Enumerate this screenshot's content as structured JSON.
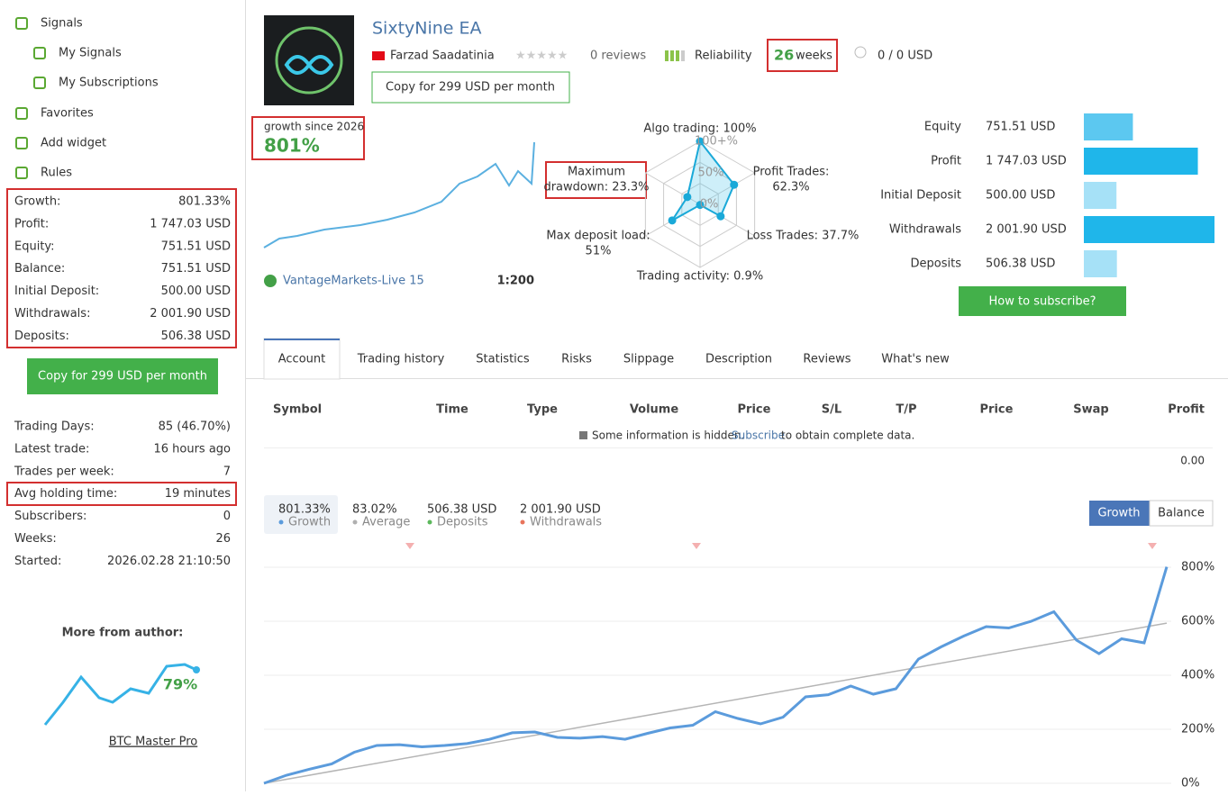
{
  "sidebar": {
    "nav": [
      "Signals",
      "My Signals",
      "My Subscriptions",
      "Favorites",
      "Add widget",
      "Rules"
    ],
    "stats": [
      [
        "Growth:",
        "801.33%"
      ],
      [
        "Profit:",
        "1 747.03 USD"
      ],
      [
        "Equity:",
        "751.51 USD"
      ],
      [
        "Balance:",
        "751.51 USD"
      ],
      [
        "Initial Deposit:",
        "500.00 USD"
      ],
      [
        "Withdrawals:",
        "2 001.90 USD"
      ],
      [
        "Deposits:",
        "506.38 USD"
      ]
    ],
    "copy_button": "Copy for 299 USD per month",
    "stats2": [
      [
        "Trading Days:",
        "85 (46.70%)"
      ],
      [
        "Latest trade:",
        "16 hours ago"
      ],
      [
        "Trades per week:",
        "7"
      ],
      [
        "Avg holding time:",
        "19 minutes"
      ],
      [
        "Subscribers:",
        "0"
      ],
      [
        "Weeks:",
        "26"
      ],
      [
        "Started:",
        "2026.02.28 21:10:50"
      ]
    ],
    "more_from_author": "More from author:",
    "author_signal": {
      "growth": "79%",
      "name": "BTC Master Pro"
    }
  },
  "header": {
    "title": "SixtyNine EA",
    "author": "Farzad Saadatinia",
    "reviews": "0 reviews",
    "reliability": "Reliability",
    "weeks": "26",
    "weeks_unit": "weeks",
    "subscribers": "0 / 0 USD",
    "copy_button": "Copy for 299 USD per month"
  },
  "growth": {
    "label": "growth since 2026",
    "value": "801%",
    "broker": "VantageMarkets-Live 15",
    "leverage": "1:200"
  },
  "radar": {
    "labels": [
      [
        "Algo trading: 100%"
      ],
      [
        "Profit Trades:",
        "62.3%"
      ],
      [
        "Loss Trades: 37.7%"
      ],
      [
        "Trading activity: 0.9%"
      ],
      [
        "Max deposit load:",
        "51%"
      ],
      [
        "Maximum",
        "drawdown: 23.3%"
      ]
    ],
    "values": [
      100,
      62.3,
      37.7,
      0.9,
      51,
      23.3
    ],
    "ticks": [
      "100+%",
      "50%",
      "0%"
    ]
  },
  "balance": {
    "labels": [
      "Equity",
      "Profit",
      "Initial Deposit",
      "Withdrawals",
      "Deposits"
    ],
    "values": [
      751.51,
      1747.03,
      500,
      2001.9,
      506.38
    ],
    "value_labels": [
      "751.51 USD",
      "1 747.03 USD",
      "500.00 USD",
      "2 001.90 USD",
      "506.38 USD"
    ],
    "button": "How to subscribe?"
  },
  "tabs": [
    "Account",
    "Trading history",
    "Statistics",
    "Risks",
    "Slippage",
    "Description",
    "Reviews",
    "What's new"
  ],
  "table": {
    "headers": [
      "Symbol",
      "Time",
      "Type",
      "Volume",
      "Price",
      "S/L",
      "T/P",
      "Price",
      "Swap",
      "Profit"
    ],
    "notice": "Some information is hidden.",
    "link": "Subscribe",
    "notice_end": "to obtain complete data.",
    "total": "0.00"
  },
  "summary": [
    {
      "value": "801.33%",
      "label": "Growth",
      "color": "#5b9bdc"
    },
    {
      "value": "83.02%",
      "label": "Average",
      "color": "#b0b0b0"
    },
    {
      "value": "506.38 USD",
      "label": "Deposits",
      "color": "#5cb85c"
    },
    {
      "value": "2 001.90 USD",
      "label": "Withdrawals",
      "color": "#e8745c"
    }
  ],
  "toggle": [
    "Growth",
    "Balance"
  ],
  "chart_data": {
    "type": "line",
    "series": [
      {
        "color": "#5b9bdc",
        "values": [
          0,
          30,
          52,
          72,
          115,
          140,
          143,
          135,
          140,
          147,
          163,
          187,
          190,
          170,
          167,
          173,
          163,
          185,
          205,
          215,
          265,
          240,
          220,
          245,
          320,
          328,
          360,
          330,
          350,
          460,
          505,
          545,
          580,
          575,
          600,
          635,
          530,
          480,
          535,
          520,
          801.33
        ]
      }
    ],
    "trend": {
      "color": "#b5b5b5",
      "values": [
        0,
        593
      ]
    },
    "ylim": [
      0,
      800
    ],
    "yticks": [
      {
        "value": 0,
        "label": "0%"
      },
      {
        "value": 200,
        "label": "200%"
      },
      {
        "value": 400,
        "label": "400%"
      },
      {
        "value": 600,
        "label": "600%"
      },
      {
        "value": 800,
        "label": "800%"
      }
    ],
    "grid": true
  }
}
